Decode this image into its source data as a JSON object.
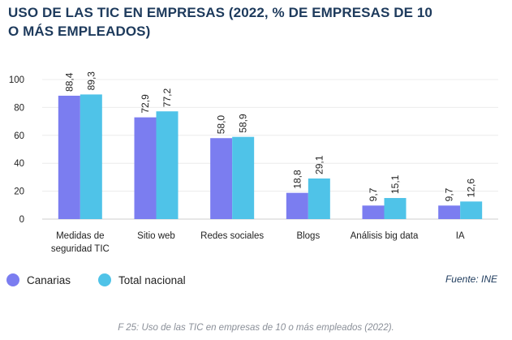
{
  "header": {
    "title_line1": "USO DE LAS TIC EN EMPRESAS (2022, % DE EMPRESAS DE 10",
    "title_line2": "O MÁS EMPLEADOS)"
  },
  "source": "Fuente: INE",
  "caption": "F 25: Uso de las TIC en empresas de 10 o más empleados (2022).",
  "colors": {
    "canarias": "#7b7df0",
    "total": "#4fc3e8",
    "title": "#1d3a5c"
  },
  "chart_data": {
    "type": "bar",
    "title": "USO DE LAS TIC EN EMPRESAS (2022, % DE EMPRESAS DE 10 O MÁS EMPLEADOS)",
    "xlabel": "",
    "ylabel": "",
    "ylim": [
      0,
      100
    ],
    "yticks": [
      0,
      20,
      40,
      60,
      80,
      100
    ],
    "grid": true,
    "legend_position": "bottom-left",
    "categories": [
      [
        "Medidas de",
        "seguridad TIC"
      ],
      [
        "Sitio web"
      ],
      [
        "Redes sociales"
      ],
      [
        "Blogs"
      ],
      [
        "Análisis big data"
      ],
      [
        "IA"
      ]
    ],
    "series": [
      {
        "name": "Canarias",
        "color": "#7b7df0",
        "values": [
          88.4,
          72.9,
          58.0,
          18.8,
          9.7,
          9.7
        ],
        "labels": [
          "88,4",
          "72,9",
          "58,0",
          "18,8",
          "9,7",
          "9,7"
        ]
      },
      {
        "name": "Total nacional",
        "color": "#4fc3e8",
        "values": [
          89.3,
          77.2,
          58.9,
          29.1,
          15.1,
          12.6
        ],
        "labels": [
          "89,3",
          "77,2",
          "58,9",
          "29,1",
          "15,1",
          "12,6"
        ]
      }
    ]
  }
}
